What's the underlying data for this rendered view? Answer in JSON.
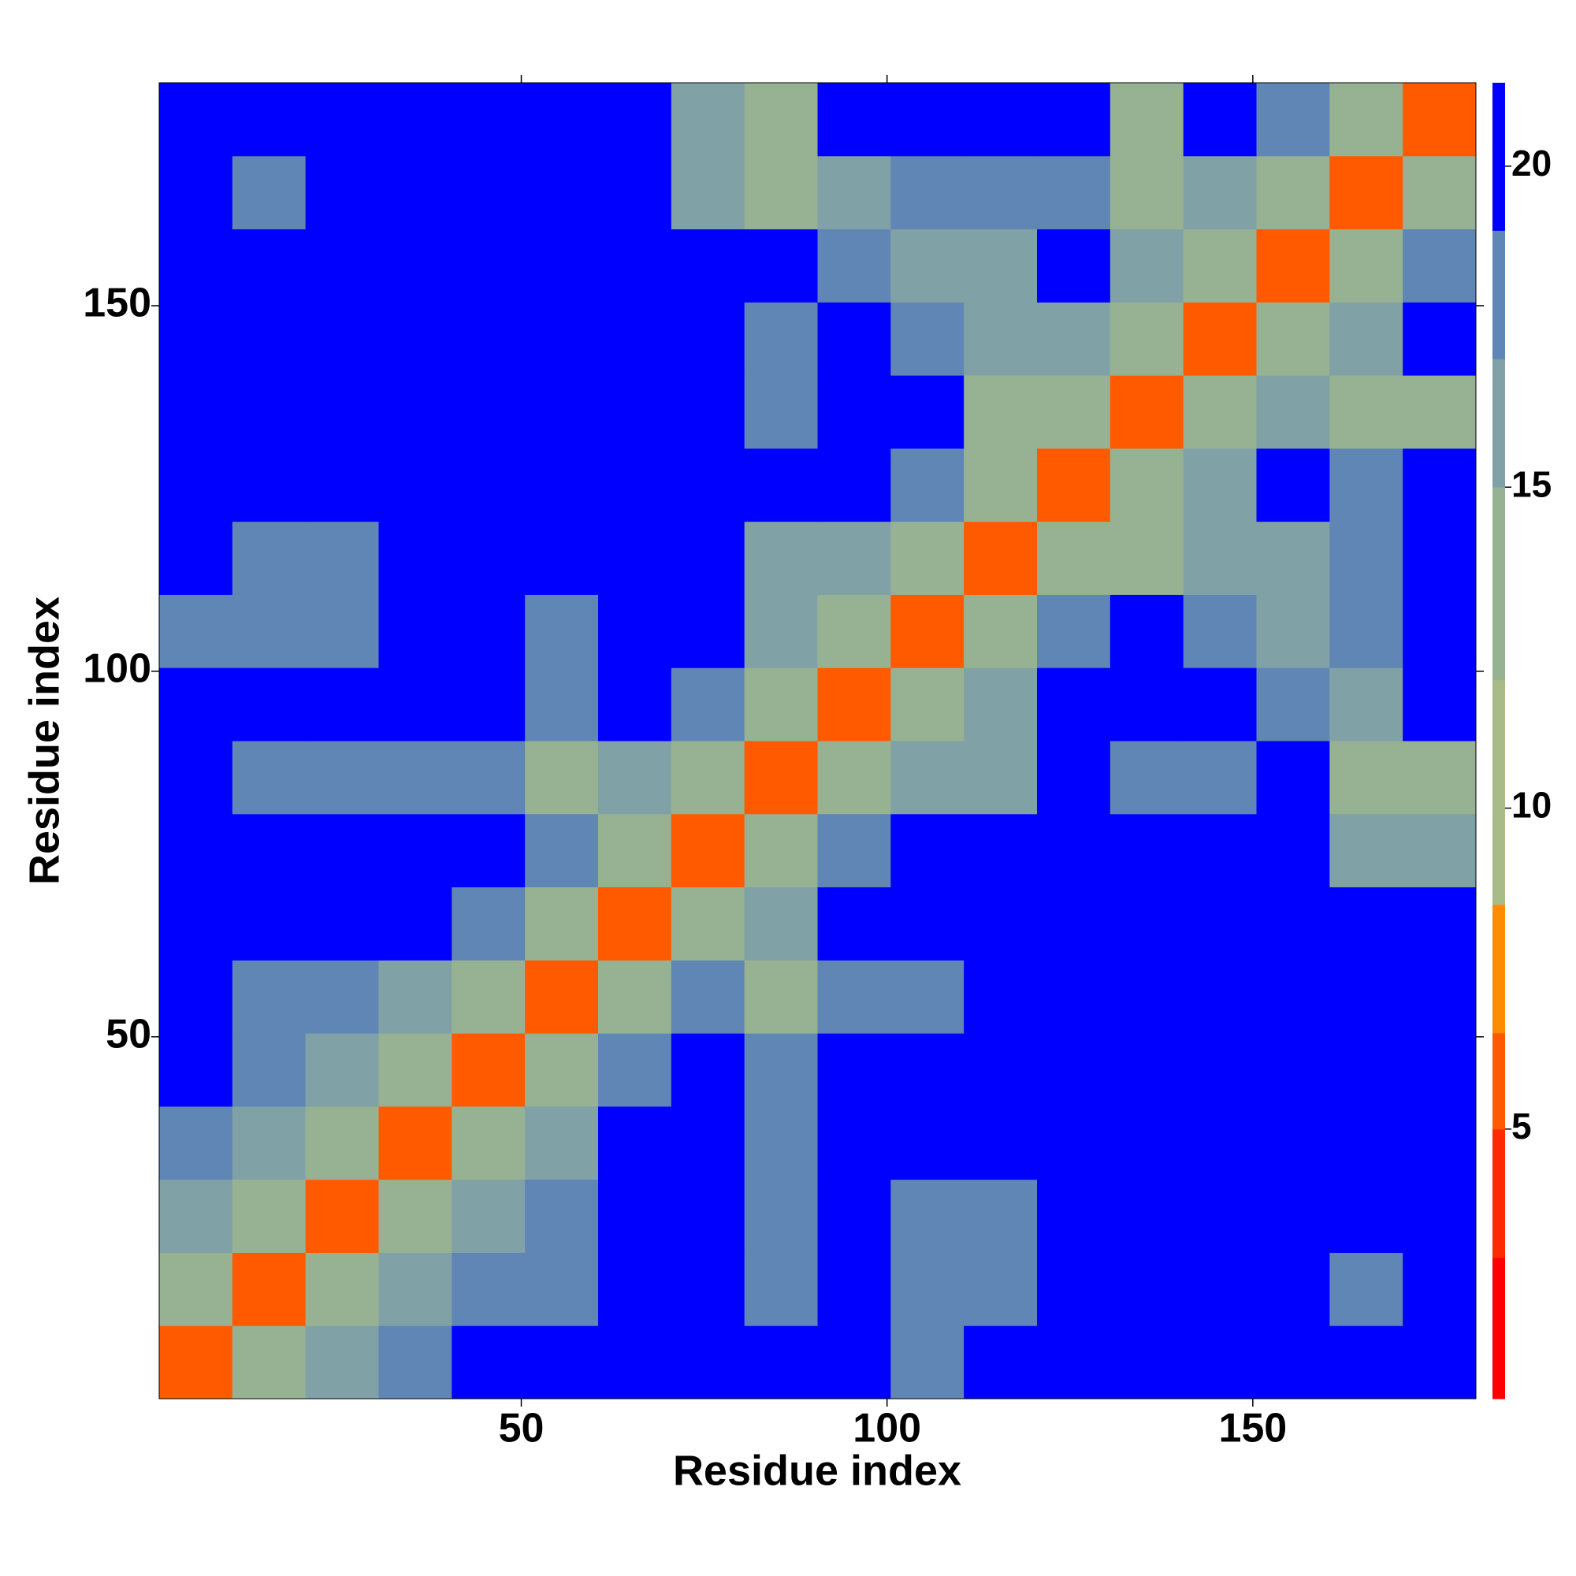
{
  "chart_data": {
    "type": "heatmap",
    "xlabel": "Residue index",
    "ylabel": "Residue index",
    "xbins": [
      0.5,
      10.5,
      20.5,
      30.5,
      40.5,
      50.5,
      60.5,
      70.5,
      80.5,
      90.5,
      100.5,
      110.5,
      120.5,
      130.5,
      140.5,
      150.5,
      160.5,
      170.5,
      180.5
    ],
    "ybins": [
      0.5,
      10.5,
      20.5,
      30.5,
      40.5,
      50.5,
      60.5,
      70.5,
      80.5,
      90.5,
      100.5,
      110.5,
      120.5,
      130.5,
      140.5,
      150.5,
      160.5,
      170.5,
      180.5
    ],
    "xlim": [
      0.5,
      180.5
    ],
    "ylim": [
      0.5,
      180.5
    ],
    "xticks": [
      50,
      100,
      150
    ],
    "yticks": [
      50,
      100,
      150
    ],
    "z": [
      [
        6,
        13,
        16,
        18,
        19,
        21,
        21,
        21,
        19,
        21,
        18,
        19,
        21,
        19,
        21,
        21,
        19,
        21
      ],
      [
        13,
        6,
        13,
        16,
        17,
        18,
        21,
        21,
        18,
        21,
        17,
        18,
        21,
        20,
        21,
        21,
        18,
        21
      ],
      [
        16,
        13,
        6,
        13,
        15,
        17,
        21,
        21,
        18,
        21,
        18,
        18,
        21,
        21,
        21,
        21,
        19,
        21
      ],
      [
        18,
        16,
        13,
        6,
        13,
        15,
        21,
        21,
        18,
        21,
        19,
        21,
        21,
        21,
        21,
        21,
        19,
        21
      ],
      [
        19,
        17,
        15,
        13,
        6,
        13,
        17,
        21,
        17,
        21,
        21,
        21,
        21,
        21,
        21,
        21,
        21,
        21
      ],
      [
        21,
        18,
        17,
        15,
        13,
        6,
        13,
        18,
        14,
        18,
        18,
        19,
        21,
        21,
        21,
        21,
        21,
        21
      ],
      [
        21,
        21,
        21,
        21,
        17,
        13,
        6,
        13,
        16,
        21,
        21,
        21,
        21,
        21,
        21,
        21,
        21,
        21
      ],
      [
        21,
        21,
        21,
        21,
        21,
        18,
        13,
        6,
        13,
        17,
        21,
        21,
        21,
        21,
        21,
        21,
        16,
        15
      ],
      [
        19,
        18,
        18,
        18,
        17,
        14,
        16,
        13,
        6,
        13,
        16,
        16,
        21,
        17,
        17,
        21,
        14,
        14
      ],
      [
        21,
        21,
        21,
        21,
        21,
        18,
        21,
        17,
        13,
        6,
        13,
        15,
        21,
        21,
        21,
        17,
        15,
        21
      ],
      [
        18,
        17,
        18,
        19,
        21,
        18,
        21,
        21,
        16,
        13,
        6,
        13,
        18,
        21,
        18,
        16,
        17,
        21
      ],
      [
        19,
        18,
        18,
        21,
        21,
        19,
        21,
        21,
        16,
        15,
        13,
        6,
        13,
        14,
        15,
        16,
        17,
        21
      ],
      [
        21,
        21,
        21,
        21,
        21,
        21,
        21,
        21,
        21,
        21,
        18,
        13,
        6,
        13,
        15,
        21,
        18,
        21
      ],
      [
        19,
        20,
        21,
        21,
        21,
        21,
        21,
        21,
        17,
        21,
        21,
        14,
        13,
        6,
        13,
        15,
        13,
        13
      ],
      [
        21,
        21,
        21,
        21,
        21,
        21,
        21,
        21,
        17,
        21,
        18,
        15,
        15,
        13,
        6,
        13,
        15,
        21
      ],
      [
        21,
        21,
        21,
        21,
        21,
        21,
        21,
        21,
        21,
        17,
        16,
        16,
        21,
        15,
        13,
        6,
        13,
        17
      ],
      [
        19,
        18,
        19,
        19,
        21,
        21,
        21,
        16,
        14,
        15,
        17,
        17,
        18,
        13,
        15,
        13,
        6,
        13
      ],
      [
        21,
        21,
        21,
        21,
        21,
        21,
        21,
        15,
        14,
        21,
        21,
        21,
        21,
        13,
        21,
        17,
        13,
        6
      ]
    ],
    "clim": [
      0.8,
      21.3
    ],
    "cticks": [
      5,
      10,
      15,
      20
    ],
    "colorscale": [
      {
        "value": 0.8,
        "color": "#ff0000"
      },
      {
        "value": 3,
        "color": "#ff2a00"
      },
      {
        "value": 5,
        "color": "#ff5a00"
      },
      {
        "value": 6.5,
        "color": "#ff8c00"
      },
      {
        "value": 8.5,
        "color": "#a8bb88"
      },
      {
        "value": 12,
        "color": "#97b293"
      },
      {
        "value": 15,
        "color": "#80a2a6"
      },
      {
        "value": 17,
        "color": "#5f86b4"
      },
      {
        "value": 19,
        "color": "#0000ff"
      }
    ]
  }
}
